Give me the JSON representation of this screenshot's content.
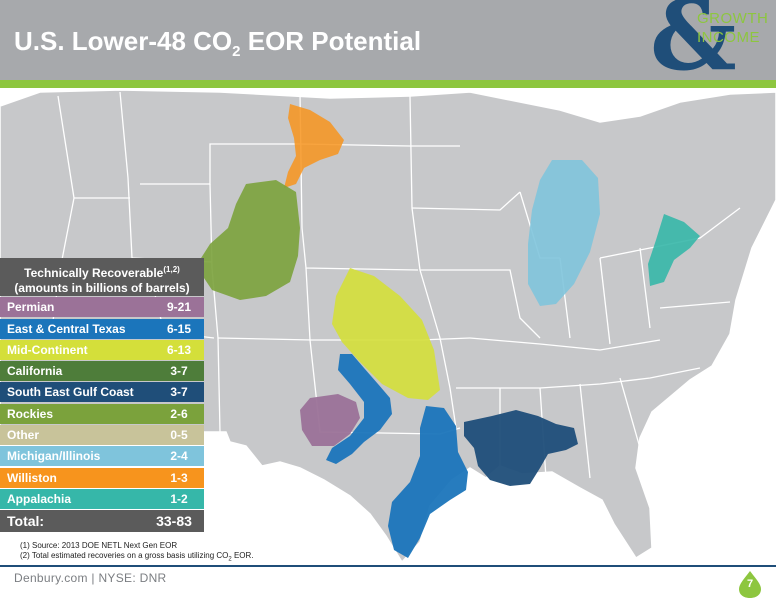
{
  "slide": {
    "title_main": "U.S. Lower-48 CO",
    "title_sub": "2",
    "title_end": " EOR Potential",
    "page_number": "7"
  },
  "logo": {
    "symbol": "&",
    "line1": "GROWTH",
    "line2": "INCOME",
    "icon": "ampersand-logo-icon"
  },
  "legend": {
    "heading_line1": "Technically Recoverable",
    "heading_sup": "(1,2)",
    "heading_line2": "(amounts in billions of barrels)",
    "rows": [
      {
        "name": "Permian",
        "value": "9-21",
        "color": "#9b7298"
      },
      {
        "name": "East & Central Texas",
        "value": "6-15",
        "color": "#1b75bb"
      },
      {
        "name": "Mid-Continent",
        "value": "6-13",
        "color": "#d4df3a"
      },
      {
        "name": "California",
        "value": "3-7",
        "color": "#4e7d3a"
      },
      {
        "name": "South East Gulf Coast",
        "value": "3-7",
        "color": "#1f4e79"
      },
      {
        "name": "Rockies",
        "value": "2-6",
        "color": "#7ba23c"
      },
      {
        "name": "Other",
        "value": "0-5",
        "color": "#c8c39a"
      },
      {
        "name": "Michigan/Illinois",
        "value": "2-4",
        "color": "#7fc4dc"
      },
      {
        "name": "Williston",
        "value": "1-3",
        "color": "#f7941d"
      },
      {
        "name": "Appalachia",
        "value": "1-2",
        "color": "#36b7a9"
      }
    ],
    "total_label": "Total:",
    "total_value": "33-83"
  },
  "footnotes": {
    "note1": "(1) Source: 2013 DOE NETL Next Gen EOR",
    "note2_prefix": "(2) Total estimated recoveries on a gross basis utilizing CO",
    "note2_sub": "2",
    "note2_suffix": " EOR."
  },
  "footer": {
    "company": "Denbury.com | NYSE: DNR"
  },
  "colors": {
    "header_gray": "#a7a9ac",
    "brand_green": "#8dc63f",
    "brand_blue": "#1f4e79"
  }
}
